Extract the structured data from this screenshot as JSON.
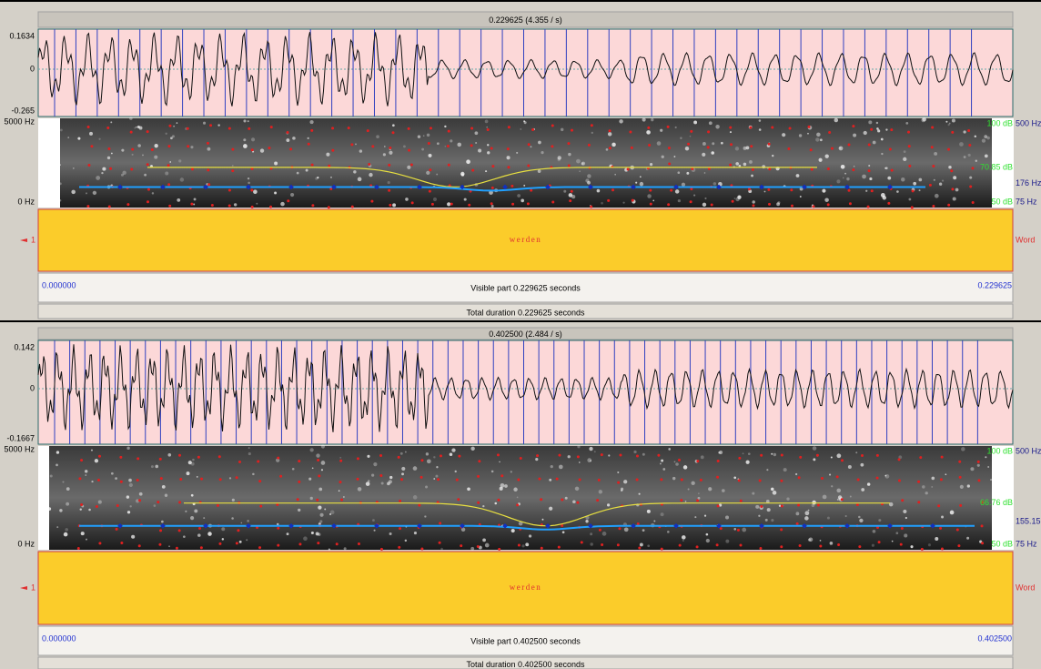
{
  "windows": [
    {
      "header": "0.229625 (4.355 / s)",
      "amplitude": {
        "max": "0.1634",
        "zero": "0",
        "min": "-0.265"
      },
      "spectrogram": {
        "top_freq": "5000 Hz",
        "bottom_freq": "0 Hz",
        "max_db": "100 dB",
        "pitch_ceiling": "500 Hz",
        "mid_db": "70.85 dB",
        "pitch": "176 Hz",
        "min_db": "50 dB",
        "pitch_floor": "75 Hz"
      },
      "tier": {
        "number": "1",
        "label": "werden",
        "name": "Word"
      },
      "start": "0.000000",
      "visible": "Visible part 0.229625 seconds",
      "end": "0.229625",
      "total": "Total duration 0.229625 seconds"
    },
    {
      "header": "0.402500 (2.484 / s)",
      "amplitude": {
        "max": "0.142",
        "zero": "0",
        "min": "-0.1667"
      },
      "spectrogram": {
        "top_freq": "5000 Hz",
        "bottom_freq": "0 Hz",
        "max_db": "100 dB",
        "pitch_ceiling": "500 Hz",
        "mid_db": "66.76 dB",
        "pitch": "155.15",
        "min_db": "50 dB",
        "pitch_floor": "75 Hz"
      },
      "tier": {
        "number": "1",
        "label": "werden",
        "name": "Word"
      },
      "start": "0.000000",
      "visible": "Visible part 0.402500 seconds",
      "end": "0.402500",
      "total": "Total duration 0.402500 seconds"
    }
  ]
}
